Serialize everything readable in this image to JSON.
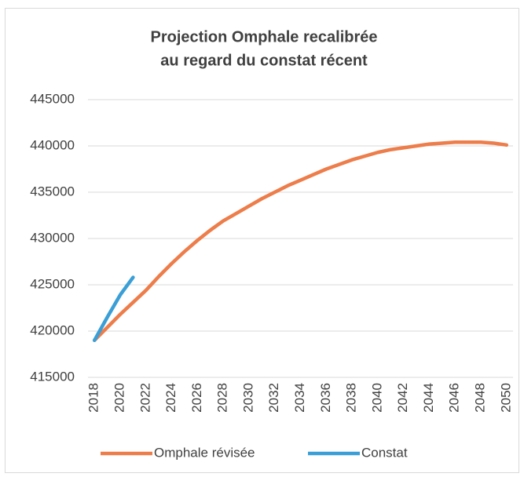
{
  "chart_data": {
    "type": "line",
    "title": [
      "Projection Omphale recalibrée",
      "au regard du constat récent"
    ],
    "x": [
      2018,
      2019,
      2020,
      2021,
      2022,
      2023,
      2024,
      2025,
      2026,
      2027,
      2028,
      2029,
      2030,
      2031,
      2032,
      2033,
      2034,
      2035,
      2036,
      2037,
      2038,
      2039,
      2040,
      2041,
      2042,
      2043,
      2044,
      2045,
      2046,
      2047,
      2048,
      2049,
      2050
    ],
    "series": [
      {
        "name": "Omphale révisée",
        "color": "#ed7d4a",
        "values": [
          419000,
          420400,
          421800,
          423100,
          424400,
          425900,
          427300,
          428600,
          429800,
          430900,
          431900,
          432700,
          433500,
          434300,
          435000,
          435700,
          436300,
          436900,
          437500,
          438000,
          438500,
          438900,
          439300,
          439600,
          439800,
          440000,
          440200,
          440300,
          440400,
          440400,
          440400,
          440300,
          440100
        ]
      },
      {
        "name": "Constat",
        "color": "#3a9fd6",
        "values": [
          419000,
          421500,
          423900,
          425800,
          null,
          null,
          null,
          null,
          null,
          null,
          null,
          null,
          null,
          null,
          null,
          null,
          null,
          null,
          null,
          null,
          null,
          null,
          null,
          null,
          null,
          null,
          null,
          null,
          null,
          null,
          null,
          null,
          null
        ]
      }
    ],
    "xlim": [
      2017.5,
      2050.5
    ],
    "xticks": [
      2018,
      2020,
      2022,
      2024,
      2026,
      2028,
      2030,
      2032,
      2034,
      2036,
      2038,
      2040,
      2042,
      2044,
      2046,
      2048,
      2050
    ],
    "ylim": [
      415000,
      445000
    ],
    "yticks": [
      415000,
      420000,
      425000,
      430000,
      435000,
      440000,
      445000
    ],
    "grid": true,
    "legend": "bottom"
  }
}
